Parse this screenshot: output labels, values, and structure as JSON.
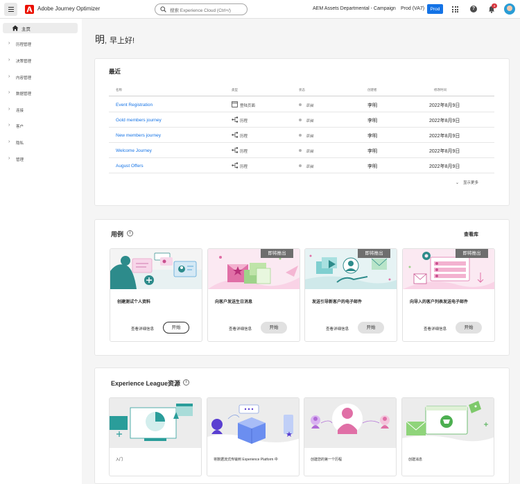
{
  "header": {
    "app_title": "Adobe Journey Optimizer",
    "search_placeholder": "搜索 Experience Cloud (Ctrl+/)",
    "org_name": "AEM Assets Departmental - Campaign",
    "sandbox": "Prod (VA7)",
    "prod_badge": "Prod",
    "notification_count": "4",
    "brand_color": "#eb1000",
    "accent_color": "#1473e6"
  },
  "sidebar": {
    "home": {
      "label": "主页",
      "icon": "home-icon"
    },
    "items": [
      {
        "label": "历程管理"
      },
      {
        "label": "决策管理"
      },
      {
        "label": "内容管理"
      },
      {
        "label": "数据管理"
      },
      {
        "label": "连接"
      },
      {
        "label": "客户"
      },
      {
        "label": "隐私"
      },
      {
        "label": "管理"
      }
    ]
  },
  "greeting": {
    "name": "明",
    "separator": ",",
    "text": "早上好!"
  },
  "recent": {
    "title": "最近",
    "columns": [
      "名称",
      "类型",
      "状态",
      "创建者",
      "修改时间"
    ],
    "rows": [
      {
        "name": "Event Registration",
        "type": "登陆页面",
        "type_icon": "page-icon",
        "status": "草稿",
        "created_by": "李明",
        "modified": "2022年8月9日"
      },
      {
        "name": "Gold members journey",
        "type": "历程",
        "type_icon": "journey-icon",
        "status": "草稿",
        "created_by": "李明",
        "modified": "2022年8月9日"
      },
      {
        "name": "New members journey",
        "type": "历程",
        "type_icon": "journey-icon",
        "status": "草稿",
        "created_by": "李明",
        "modified": "2022年8月9日"
      },
      {
        "name": "Welcome Journey",
        "type": "历程",
        "type_icon": "journey-icon",
        "status": "草稿",
        "created_by": "李明",
        "modified": "2022年8月9日"
      },
      {
        "name": "August Offers",
        "type": "历程",
        "type_icon": "journey-icon",
        "status": "草稿",
        "created_by": "李明",
        "modified": "2022年8月9日"
      }
    ],
    "show_more": "显示更多"
  },
  "use_cases": {
    "title": "用例",
    "view_library": "查看库",
    "cards": [
      {
        "title": "创建测试个人资料",
        "coming_soon": "",
        "details": "查看详细信息",
        "start": "开始"
      },
      {
        "title": "向客户发送生日消息",
        "coming_soon": "即将推出",
        "details": "查看详细信息",
        "start": "开始"
      },
      {
        "title": "发送引导新客户的电子邮件",
        "coming_soon": "即将推出",
        "details": "查看详细信息",
        "start": "开始"
      },
      {
        "title": "向导入的客户列表发送电子邮件",
        "coming_soon": "即将推出",
        "details": "查看详细信息",
        "start": "开始"
      }
    ]
  },
  "league": {
    "title": "Experience League资源",
    "cards": [
      {
        "title": "入门"
      },
      {
        "title": "将数据流式传输到 Experience Platform 中"
      },
      {
        "title": "创建您的第一个历程"
      },
      {
        "title": "创建消息"
      }
    ]
  }
}
